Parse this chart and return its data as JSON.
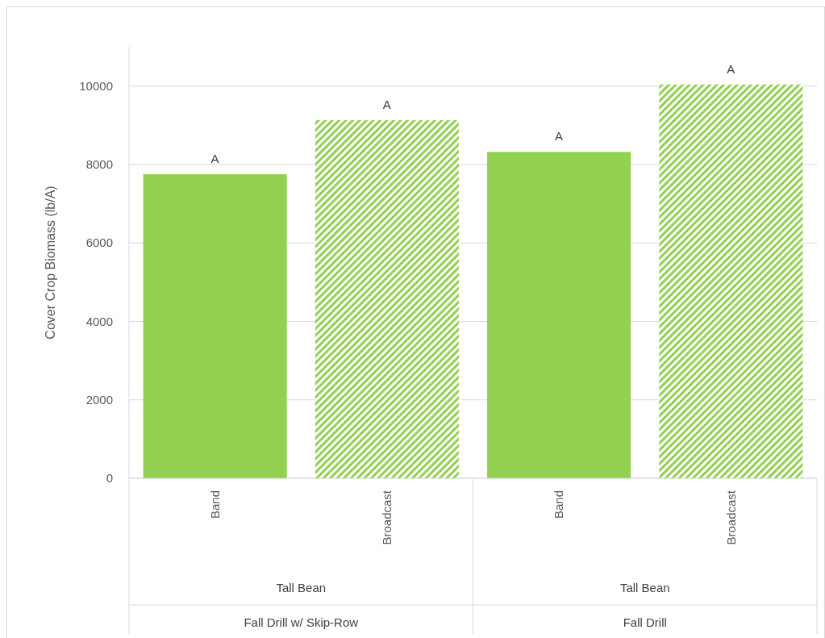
{
  "chart_data": {
    "type": "bar",
    "ylabel": "Cover Crop Biomass (lb/A)",
    "categories": [
      "Band",
      "Broadcast",
      "Band",
      "Broadcast"
    ],
    "series": [
      {
        "color": "#92d050",
        "values": [
          7750,
          null,
          8320,
          null
        ],
        "value_labels": [
          "A",
          null,
          "A",
          null
        ]
      },
      {
        "color": "#92d050",
        "values": [
          null,
          9130,
          null,
          10040
        ],
        "value_labels": [
          null,
          "A",
          null,
          "A"
        ]
      }
    ],
    "annotations": [
      "Tall Bean",
      "Fall Drill w/ Skip-Row",
      "Tall Bean",
      "Fall Drill"
    ],
    "ylim": [
      0,
      11000
    ],
    "yticks": [
      0,
      2000,
      4000,
      6000,
      8000,
      10000
    ],
    "grid": "y"
  }
}
